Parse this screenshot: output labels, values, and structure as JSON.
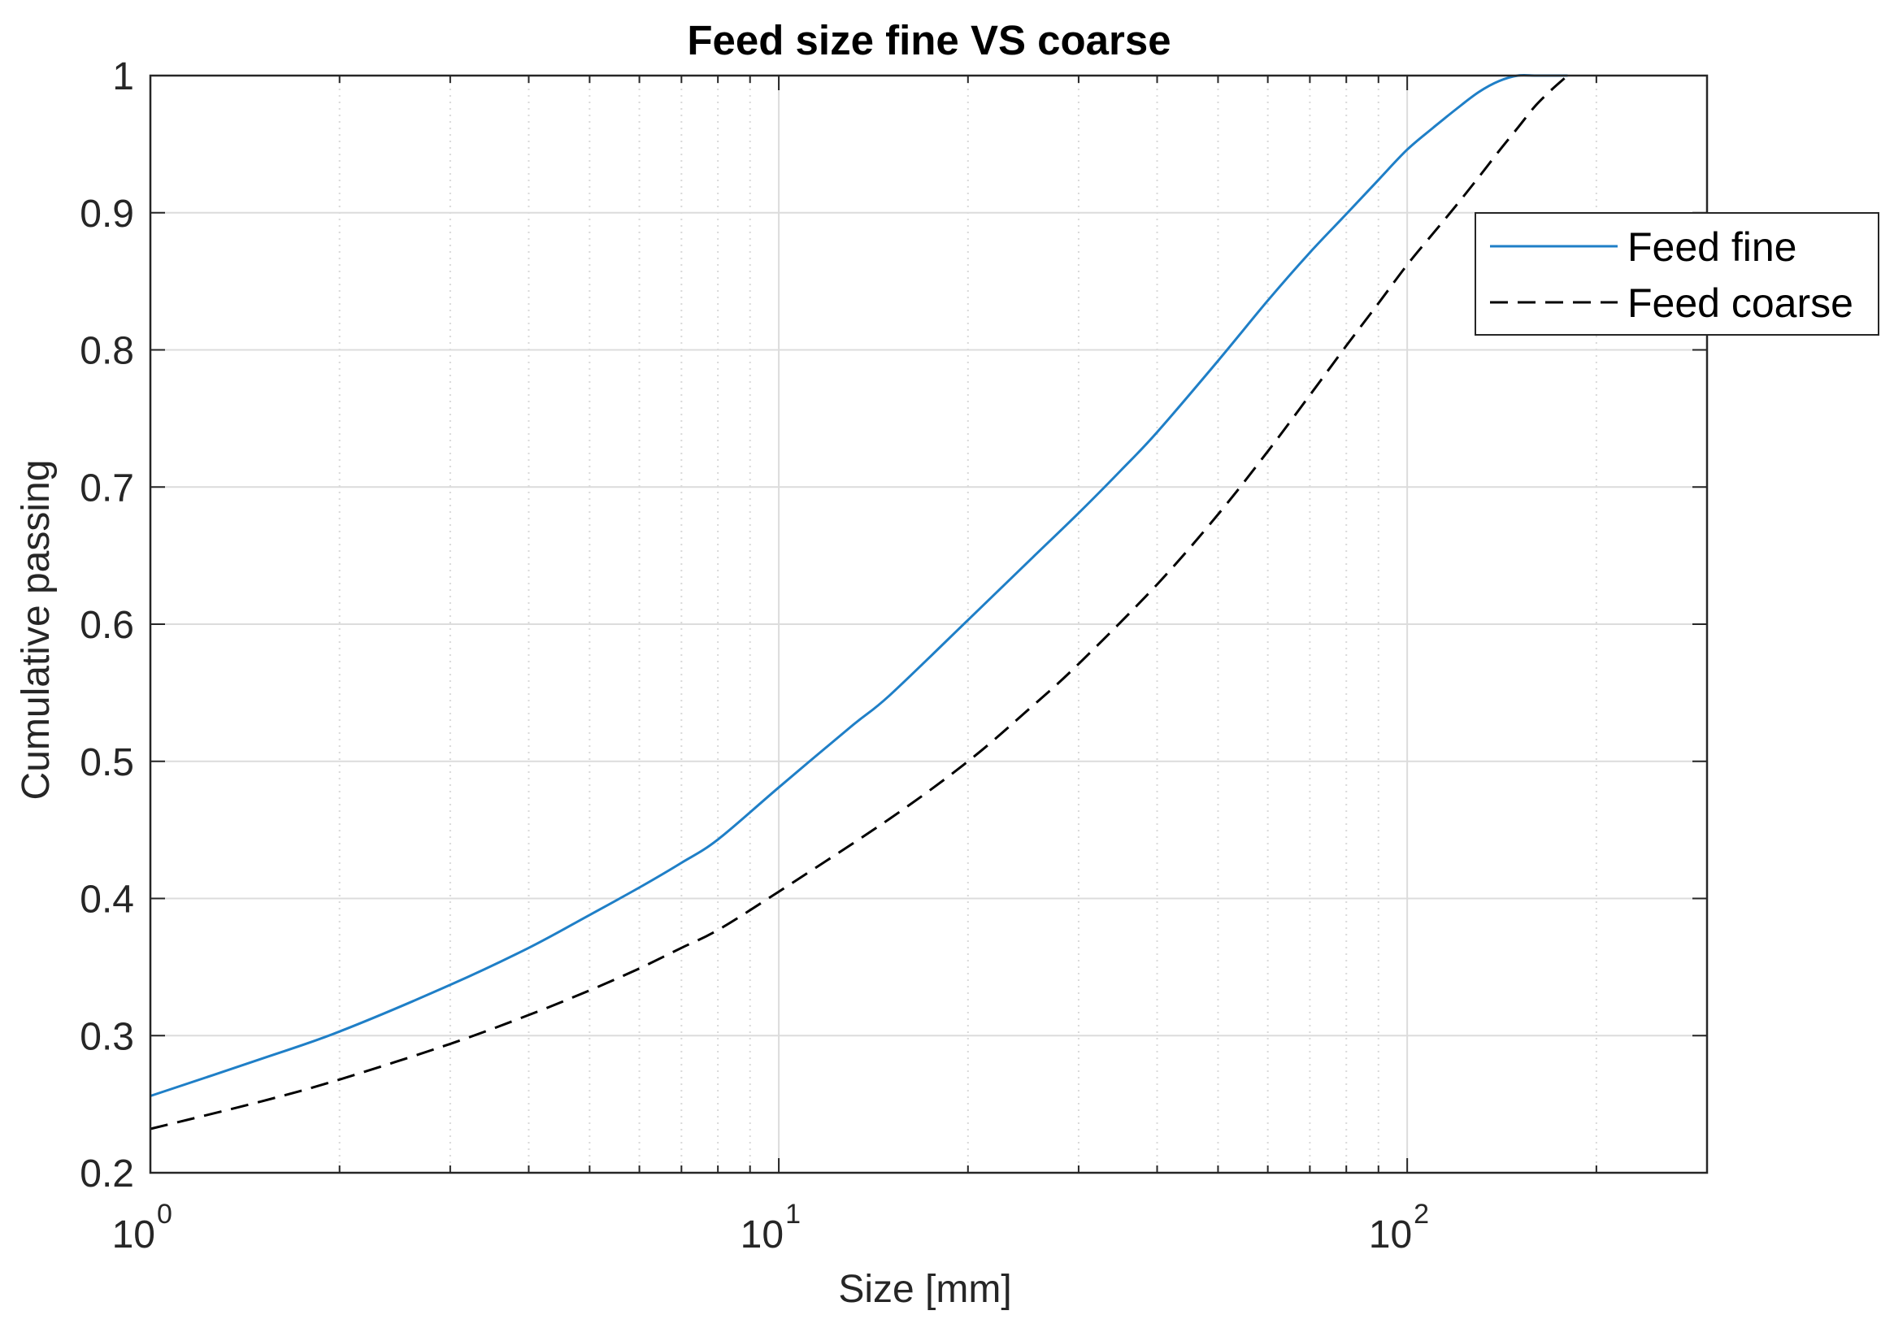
{
  "chart_data": {
    "type": "line",
    "title": "Feed size fine VS coarse",
    "xlabel": "Size [mm]",
    "ylabel": "Cumulative passing",
    "xscale": "log",
    "xlim": [
      1,
      300
    ],
    "ylim": [
      0.2,
      1
    ],
    "grid": true,
    "xticks": [
      {
        "value": 1,
        "base": "10",
        "exp": "0"
      },
      {
        "value": 10,
        "base": "10",
        "exp": "1"
      },
      {
        "value": 100,
        "base": "10",
        "exp": "2"
      }
    ],
    "yticks": [
      {
        "value": 0.2,
        "label": "0.2"
      },
      {
        "value": 0.3,
        "label": "0.3"
      },
      {
        "value": 0.4,
        "label": "0.4"
      },
      {
        "value": 0.5,
        "label": "0.5"
      },
      {
        "value": 0.6,
        "label": "0.6"
      },
      {
        "value": 0.7,
        "label": "0.7"
      },
      {
        "value": 0.8,
        "label": "0.8"
      },
      {
        "value": 0.9,
        "label": "0.9"
      },
      {
        "value": 1.0,
        "label": "1"
      }
    ],
    "legend_position": "top-right",
    "series": [
      {
        "name": "Feed fine",
        "color": "#1f7fc7",
        "style": "solid",
        "x": [
          1,
          1.5,
          2,
          3,
          4,
          5,
          6,
          7,
          8,
          10,
          13,
          15,
          20,
          25,
          30,
          35,
          40,
          50,
          60,
          70,
          80,
          90,
          100,
          110,
          120,
          130,
          140,
          150,
          160,
          170,
          180
        ],
        "y": [
          0.256,
          0.283,
          0.303,
          0.337,
          0.364,
          0.388,
          0.408,
          0.426,
          0.443,
          0.481,
          0.525,
          0.548,
          0.603,
          0.646,
          0.681,
          0.712,
          0.74,
          0.792,
          0.836,
          0.871,
          0.899,
          0.924,
          0.946,
          0.962,
          0.976,
          0.988,
          0.996,
          1.0,
          1.0,
          1.0,
          1.0
        ]
      },
      {
        "name": "Feed coarse",
        "color": "#000000",
        "style": "dashed",
        "x": [
          1,
          1.5,
          2,
          3,
          4,
          5,
          6,
          7,
          8,
          10,
          15,
          20,
          25,
          30,
          40,
          50,
          60,
          70,
          80,
          90,
          100,
          110,
          120,
          130,
          140,
          150,
          160,
          170,
          180
        ],
        "y": [
          0.232,
          0.252,
          0.268,
          0.294,
          0.315,
          0.333,
          0.349,
          0.364,
          0.377,
          0.405,
          0.458,
          0.5,
          0.538,
          0.571,
          0.629,
          0.68,
          0.726,
          0.767,
          0.803,
          0.834,
          0.862,
          0.885,
          0.906,
          0.926,
          0.945,
          0.962,
          0.978,
          0.99,
          1.0
        ]
      }
    ]
  }
}
